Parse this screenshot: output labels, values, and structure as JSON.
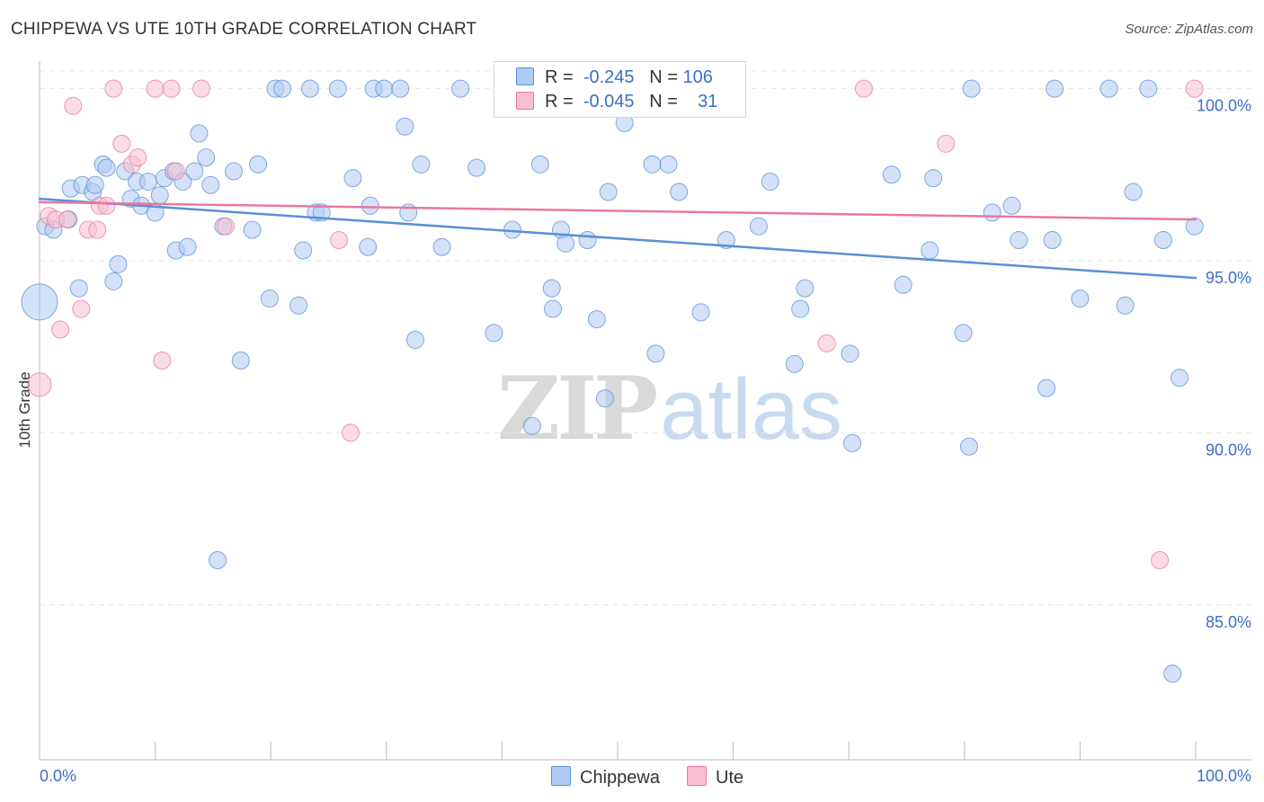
{
  "header": {
    "title": "CHIPPEWA VS UTE 10TH GRADE CORRELATION CHART",
    "source": "Source: ZipAtlas.com"
  },
  "watermark": {
    "part1": "ZIP",
    "part2": "atlas"
  },
  "legend_top": {
    "rows": [
      {
        "r_label": "R =",
        "r_value": "-0.245",
        "n_label": "N =",
        "n_value": "106",
        "color": "#aecbf2"
      },
      {
        "r_label": "R =",
        "r_value": "-0.045",
        "n_label": "N =",
        "n_value": "31",
        "color": "#f7bfd0"
      }
    ]
  },
  "legend_bottom": {
    "items": [
      {
        "label": "Chippewa",
        "color": "#aecbf2"
      },
      {
        "label": "Ute",
        "color": "#f7bfd0"
      }
    ]
  },
  "chart_data": {
    "type": "scatter",
    "title": "CHIPPEWA VS UTE 10TH GRADE CORRELATION CHART",
    "ylabel": "10th Grade",
    "xlim": [
      0,
      100
    ],
    "ylim": [
      80.5,
      100.8
    ],
    "x_tick_labels": [
      "0.0%",
      "100.0%"
    ],
    "y_ticks": [
      85,
      90,
      95,
      100
    ],
    "y_tick_labels": [
      "85.0%",
      "90.0%",
      "95.0%",
      "100.0%"
    ],
    "grid": true,
    "legend_placement": "top-center",
    "series": [
      {
        "name": "Chippewa",
        "color": "#5b8fd6",
        "fill": "#aecbf2",
        "r": "-0.245",
        "n": "106",
        "trend": {
          "x": [
            0,
            100
          ],
          "y": [
            96.8,
            94.5
          ]
        },
        "points": [
          [
            0.5,
            96.0
          ],
          [
            1.2,
            95.9
          ],
          [
            2.5,
            96.2
          ],
          [
            2.7,
            97.1
          ],
          [
            3.4,
            94.2
          ],
          [
            3.7,
            97.2
          ],
          [
            4.6,
            97.0
          ],
          [
            4.8,
            97.2
          ],
          [
            5.5,
            97.8
          ],
          [
            5.8,
            97.7
          ],
          [
            6.4,
            94.4
          ],
          [
            6.8,
            94.9
          ],
          [
            7.4,
            97.6
          ],
          [
            7.9,
            96.8
          ],
          [
            8.4,
            97.3
          ],
          [
            8.8,
            96.6
          ],
          [
            9.4,
            97.3
          ],
          [
            10.0,
            96.4
          ],
          [
            10.4,
            96.9
          ],
          [
            10.8,
            97.4
          ],
          [
            11.6,
            97.6
          ],
          [
            11.8,
            95.3
          ],
          [
            12.4,
            97.3
          ],
          [
            12.8,
            95.4
          ],
          [
            13.4,
            97.6
          ],
          [
            13.8,
            98.7
          ],
          [
            14.4,
            98.0
          ],
          [
            14.8,
            97.2
          ],
          [
            15.4,
            86.3
          ],
          [
            15.9,
            96.0
          ],
          [
            16.8,
            97.6
          ],
          [
            17.4,
            92.1
          ],
          [
            18.4,
            95.9
          ],
          [
            18.9,
            97.8
          ],
          [
            19.9,
            93.9
          ],
          [
            20.4,
            100.0
          ],
          [
            21.0,
            100.0
          ],
          [
            22.4,
            93.7
          ],
          [
            22.8,
            95.3
          ],
          [
            23.4,
            100.0
          ],
          [
            23.9,
            96.4
          ],
          [
            24.4,
            96.4
          ],
          [
            25.8,
            100.0
          ],
          [
            27.1,
            97.4
          ],
          [
            28.4,
            95.4
          ],
          [
            28.6,
            96.6
          ],
          [
            28.9,
            100.0
          ],
          [
            29.8,
            100.0
          ],
          [
            31.2,
            100.0
          ],
          [
            31.6,
            98.9
          ],
          [
            31.9,
            96.4
          ],
          [
            32.5,
            92.7
          ],
          [
            33.0,
            97.8
          ],
          [
            34.8,
            95.4
          ],
          [
            36.4,
            100.0
          ],
          [
            37.8,
            97.7
          ],
          [
            39.3,
            92.9
          ],
          [
            40.9,
            95.9
          ],
          [
            41.7,
            100.0
          ],
          [
            42.6,
            90.2
          ],
          [
            43.3,
            97.8
          ],
          [
            44.3,
            94.2
          ],
          [
            44.4,
            93.6
          ],
          [
            45.1,
            95.9
          ],
          [
            45.5,
            95.5
          ],
          [
            47.4,
            95.6
          ],
          [
            48.2,
            93.3
          ],
          [
            48.9,
            91.0
          ],
          [
            49.2,
            97.0
          ],
          [
            50.6,
            99.0
          ],
          [
            53.0,
            97.8
          ],
          [
            53.3,
            92.3
          ],
          [
            54.4,
            97.8
          ],
          [
            55.3,
            97.0
          ],
          [
            57.2,
            93.5
          ],
          [
            59.4,
            95.6
          ],
          [
            62.2,
            96.0
          ],
          [
            63.2,
            97.3
          ],
          [
            65.3,
            92.0
          ],
          [
            65.8,
            93.6
          ],
          [
            66.2,
            94.2
          ],
          [
            70.1,
            92.3
          ],
          [
            70.3,
            89.7
          ],
          [
            73.7,
            97.5
          ],
          [
            74.7,
            94.3
          ],
          [
            77.0,
            95.3
          ],
          [
            77.3,
            97.4
          ],
          [
            79.9,
            92.9
          ],
          [
            80.4,
            89.6
          ],
          [
            80.6,
            100.0
          ],
          [
            82.4,
            96.4
          ],
          [
            84.1,
            96.6
          ],
          [
            84.7,
            95.6
          ],
          [
            87.1,
            91.3
          ],
          [
            87.6,
            95.6
          ],
          [
            87.8,
            100.0
          ],
          [
            90.0,
            93.9
          ],
          [
            92.5,
            100.0
          ],
          [
            93.9,
            93.7
          ],
          [
            94.6,
            97.0
          ],
          [
            95.9,
            100.0
          ],
          [
            97.2,
            95.6
          ],
          [
            98.0,
            83.0
          ],
          [
            98.6,
            91.6
          ],
          [
            99.9,
            96.0
          ],
          [
            0.0,
            93.8
          ]
        ]
      },
      {
        "name": "Ute",
        "color": "#e8789e",
        "fill": "#f7bfd0",
        "r": "-0.045",
        "n": "31",
        "trend": {
          "x": [
            0,
            100
          ],
          "y": [
            96.7,
            96.2
          ]
        },
        "points": [
          [
            0.0,
            91.4
          ],
          [
            0.8,
            96.3
          ],
          [
            1.4,
            96.2
          ],
          [
            1.8,
            93.0
          ],
          [
            2.4,
            96.2
          ],
          [
            2.9,
            99.5
          ],
          [
            3.6,
            93.6
          ],
          [
            4.2,
            95.9
          ],
          [
            5.0,
            95.9
          ],
          [
            5.2,
            96.6
          ],
          [
            5.8,
            96.6
          ],
          [
            6.4,
            100.0
          ],
          [
            7.1,
            98.4
          ],
          [
            8.0,
            97.8
          ],
          [
            8.5,
            98.0
          ],
          [
            10.0,
            100.0
          ],
          [
            10.6,
            92.1
          ],
          [
            11.4,
            100.0
          ],
          [
            11.8,
            97.6
          ],
          [
            14.0,
            100.0
          ],
          [
            16.1,
            96.0
          ],
          [
            25.9,
            95.6
          ],
          [
            26.9,
            90.0
          ],
          [
            41.6,
            100.0
          ],
          [
            45.6,
            100.0
          ],
          [
            52.4,
            100.0
          ],
          [
            68.1,
            92.6
          ],
          [
            71.3,
            100.0
          ],
          [
            78.4,
            98.4
          ],
          [
            96.9,
            86.3
          ],
          [
            99.9,
            100.0
          ]
        ]
      }
    ]
  }
}
